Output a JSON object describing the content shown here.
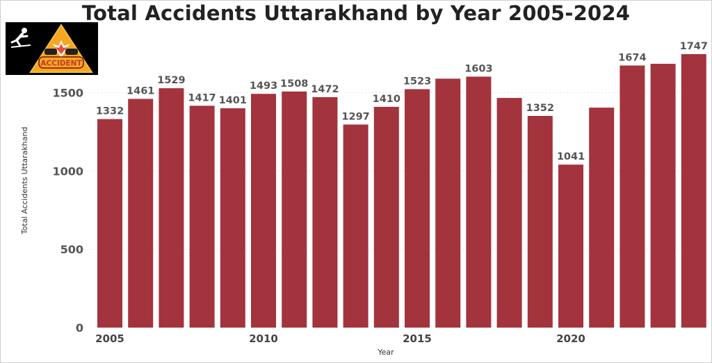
{
  "chart_data": {
    "type": "bar",
    "title": "Total Accidents Uttarakhand by Year 2005-2024",
    "xlabel": "Year",
    "ylabel": "Total Accidents Uttarakhand",
    "categories": [
      2005,
      2006,
      2007,
      2008,
      2009,
      2010,
      2011,
      2012,
      2013,
      2014,
      2015,
      2016,
      2017,
      2018,
      2019,
      2020,
      2021,
      2022,
      2023,
      2024
    ],
    "values": [
      1332,
      1461,
      1529,
      1417,
      1401,
      1493,
      1508,
      1472,
      1297,
      1410,
      1523,
      1590,
      1603,
      1467,
      1352,
      1041,
      1405,
      1674,
      1685,
      1747
    ],
    "data_labels": [
      "1332",
      "1461",
      "1529",
      "1417",
      "1401",
      "1493",
      "1508",
      "1472",
      "1297",
      "1410",
      "1523",
      "",
      "1603",
      "",
      "1352",
      "1041",
      "",
      "1674",
      "",
      "1747"
    ],
    "x_ticks": [
      "2005",
      "2010",
      "2015",
      "2020"
    ],
    "y_ticks": [
      "0",
      "500",
      "1000",
      "1500"
    ],
    "ylim": [
      0,
      1760
    ],
    "grid": true,
    "bar_color": "#a3333d"
  },
  "logo": {
    "label": "ACCIDENT",
    "icon": "accident-warning-icon",
    "colors": {
      "background": "#000000",
      "triangle": "#f5a623",
      "text": "#c0392b"
    }
  }
}
